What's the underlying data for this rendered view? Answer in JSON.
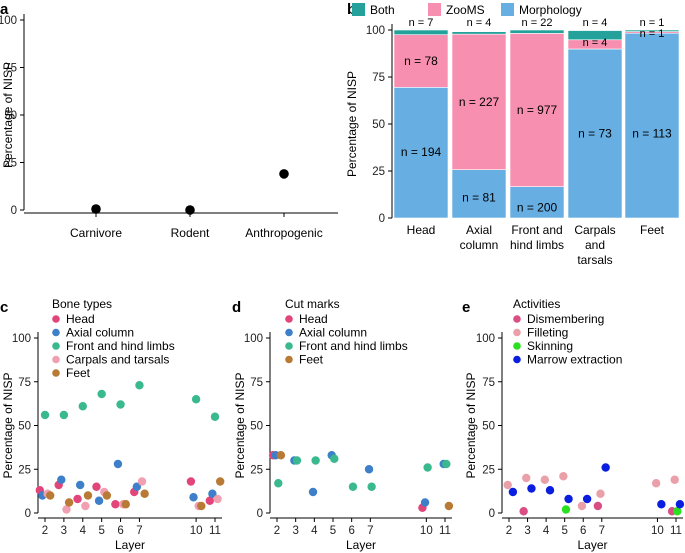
{
  "colors": {
    "both": "#23a19a",
    "zooms": "#f78fb0",
    "morphology": "#67aee3",
    "head": "#e2457a",
    "axial": "#3d7fc8",
    "front_hind": "#3ab98e",
    "carpals": "#f0a0b0",
    "feet": "#b87a35",
    "dismembering": "#d94f83",
    "filleting": "#eaa0a8",
    "skinning": "#2be01f",
    "marrow": "#0a1ee0"
  },
  "chart_data": [
    {
      "panel": "a",
      "type": "scatter",
      "categories": [
        "Carnivore",
        "Rodent",
        "Anthropogenic"
      ],
      "values": [
        0.5,
        0,
        19
      ],
      "ylabel": "Percentage of NISP",
      "ylim": [
        0,
        100
      ],
      "yticks": [
        0,
        25,
        50,
        75,
        100
      ]
    },
    {
      "panel": "b",
      "type": "bar",
      "stacked": true,
      "categories": [
        "Head",
        "Axial\ncolumn",
        "Front and\nhind limbs",
        "Carpals\nand\ntarsals",
        "Feet"
      ],
      "ylabel": "Percentage of NISP",
      "ylim": [
        0,
        100
      ],
      "yticks": [
        0,
        25,
        50,
        75,
        100
      ],
      "legend": [
        "Both",
        "ZooMS",
        "Morphology"
      ],
      "series": [
        {
          "name": "Morphology",
          "values": [
            69.5,
            25.7,
            16.7,
            89.9,
            98.3
          ],
          "n": [
            "n = 194",
            "n = 81",
            "n = 200",
            "n = 73",
            "n = 113"
          ]
        },
        {
          "name": "ZooMS",
          "values": [
            28.0,
            72.1,
            81.5,
            4.9,
            0.85
          ],
          "n": [
            "n = 78",
            "n = 227",
            "n = 977",
            "n = 4",
            "n = 1"
          ]
        },
        {
          "name": "Both",
          "values": [
            2.5,
            1.3,
            1.8,
            4.9,
            0.85
          ],
          "n": [
            "n = 7",
            "n = 4",
            "n = 22",
            "n = 4",
            "n = 1"
          ]
        }
      ]
    },
    {
      "panel": "c",
      "type": "scatter",
      "legend_title": "Bone types",
      "x": [
        2,
        3,
        4,
        5,
        6,
        7,
        10,
        11
      ],
      "xlabel": "Layer",
      "ylabel": "Percentage of NISP",
      "ylim": [
        0,
        100
      ],
      "yticks": [
        0,
        25,
        50,
        75,
        100
      ],
      "series": [
        {
          "name": "Head",
          "values": [
            13,
            16,
            8,
            15,
            5,
            12,
            18,
            7
          ]
        },
        {
          "name": "Axial column",
          "values": [
            10,
            19,
            16,
            7,
            28,
            15,
            9,
            11
          ]
        },
        {
          "name": "Front and hind limbs",
          "values": [
            56,
            56,
            61,
            68,
            62,
            73,
            65,
            55
          ]
        },
        {
          "name": "Carpals and tarsals",
          "values": [
            11,
            2,
            4,
            12,
            5,
            18,
            4,
            8
          ]
        },
        {
          "name": "Feet",
          "values": [
            10,
            6,
            10,
            10,
            5,
            11,
            4,
            18
          ]
        }
      ]
    },
    {
      "panel": "d",
      "type": "scatter",
      "legend_title": "Cut marks",
      "x": [
        2,
        3,
        4,
        5,
        6,
        7,
        10,
        11
      ],
      "xlabel": "Layer",
      "ylabel": "Percentage of NISP",
      "ylim": [
        0,
        100
      ],
      "yticks": [
        0,
        25,
        50,
        75,
        100
      ],
      "series": [
        {
          "name": "Head",
          "values": [
            33,
            null,
            null,
            null,
            null,
            null,
            3,
            null
          ]
        },
        {
          "name": "Axial column",
          "values": [
            33,
            30,
            12,
            33,
            null,
            25,
            6,
            28
          ]
        },
        {
          "name": "Front and hind limbs",
          "values": [
            17,
            30,
            30,
            31,
            15,
            15,
            26,
            28
          ]
        },
        {
          "name": "Feet",
          "values": [
            33,
            null,
            null,
            null,
            null,
            null,
            null,
            4
          ]
        }
      ]
    },
    {
      "panel": "e",
      "type": "scatter",
      "legend_title": "Activities",
      "x": [
        2,
        3,
        4,
        5,
        6,
        7,
        10,
        11
      ],
      "xlabel": "Layer",
      "ylabel": "Percentage of NISP",
      "ylim": [
        0,
        100
      ],
      "yticks": [
        0,
        25,
        50,
        75,
        100
      ],
      "series": [
        {
          "name": "Dismembering",
          "values": [
            null,
            1,
            null,
            null,
            null,
            4,
            null,
            1
          ]
        },
        {
          "name": "Filleting",
          "values": [
            16,
            20,
            19,
            21,
            4,
            11,
            17,
            19
          ]
        },
        {
          "name": "Skinning",
          "values": [
            null,
            null,
            null,
            2,
            null,
            null,
            null,
            1
          ]
        },
        {
          "name": "Marrow extraction",
          "values": [
            12,
            14,
            13,
            8,
            8,
            26,
            5,
            5
          ]
        }
      ]
    }
  ]
}
